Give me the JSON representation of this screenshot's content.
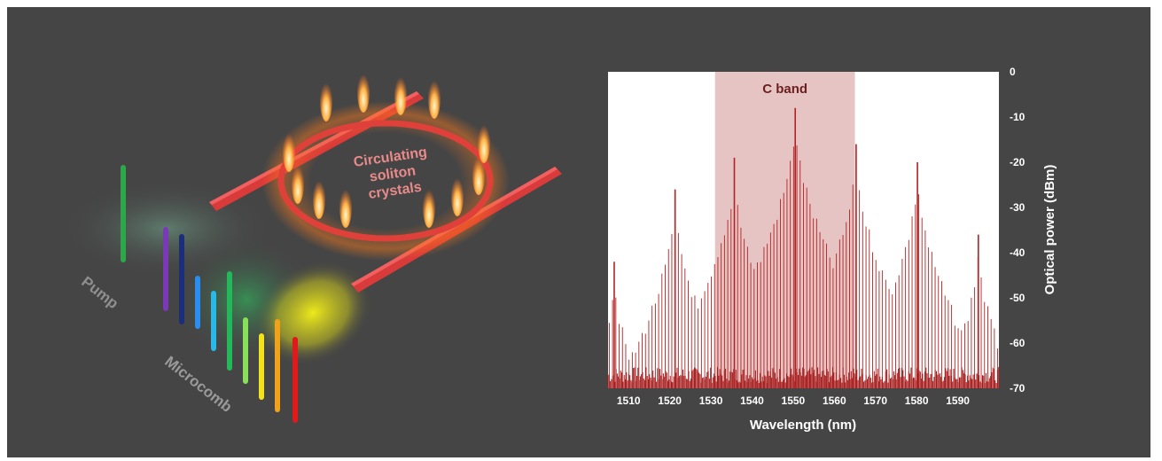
{
  "diagram": {
    "ring_label": [
      "Circulating",
      "soliton",
      "crystals"
    ],
    "pump_label": "Pump",
    "comb_label": "Microcomb",
    "colors": {
      "background": "#454545",
      "waveguide": "#d93a3a",
      "glow": "#ff8a2a"
    }
  },
  "chart_data": {
    "type": "line",
    "xlabel": "Wavelength (nm)",
    "ylabel": "Optical power (dBm)",
    "xlim": [
      1505,
      1600
    ],
    "ylim": [
      -70,
      0
    ],
    "x_ticks": [
      1510,
      1520,
      1530,
      1540,
      1550,
      1560,
      1570,
      1580,
      1590
    ],
    "y_ticks": [
      0,
      -10,
      -20,
      -30,
      -40,
      -50,
      -60,
      -70
    ],
    "shaded_region": {
      "label": "C band",
      "range": [
        1531,
        1565
      ]
    },
    "grid": false,
    "series": [
      {
        "color": "#b22222",
        "peaks": [
          {
            "x": 1506.5,
            "y": -42
          },
          {
            "x": 1521.3,
            "y": -26
          },
          {
            "x": 1535.7,
            "y": -19
          },
          {
            "x": 1550.5,
            "y": -8
          },
          {
            "x": 1565.3,
            "y": -16
          },
          {
            "x": 1580.2,
            "y": -20
          },
          {
            "x": 1595.0,
            "y": -36
          }
        ]
      }
    ]
  }
}
